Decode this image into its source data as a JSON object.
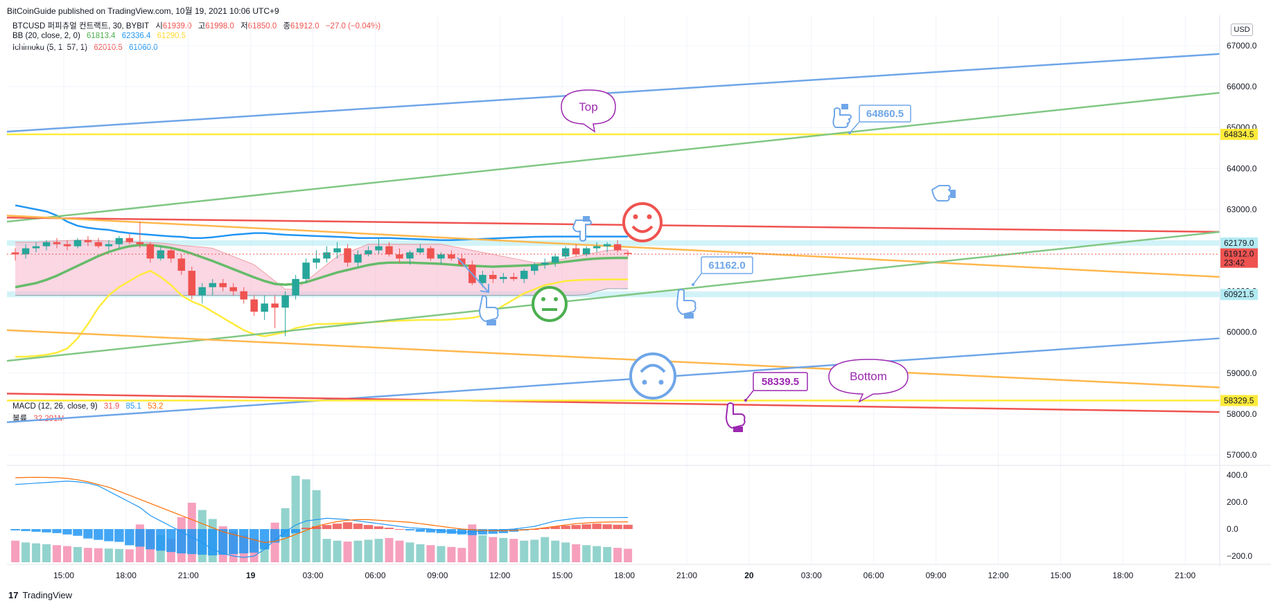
{
  "header": {
    "published": "BitCoinGuide published on TradingView.com, 10월 19, 2021 10:06 UTC+9"
  },
  "legend": {
    "symbol": "BTCUSD 퍼피츄얼 컨트랙트, 30, BYBIT",
    "ohlc": {
      "o_label": "시",
      "o": "61939.0",
      "h_label": "고",
      "h": "61998.0",
      "l_label": "저",
      "l": "61850.0",
      "c_label": "종",
      "c": "61912.0",
      "change": "−27.0 (−0.04%)"
    },
    "bb": {
      "label": "BB (20, close, 2, 0)",
      "basis": "61813.4",
      "upper": "62336.4",
      "lower": "61290.5"
    },
    "ichimoku": {
      "label": "Ichimoku (5, 1, 57, 1)",
      "v1": "62010.5",
      "v2": "61060.0"
    },
    "macd": {
      "label": "MACD (12, 26, close, 9)",
      "hist": "31.9",
      "macd": "85.1",
      "signal": "53.2"
    },
    "volume": {
      "label": "볼륨",
      "value": "32.291M"
    }
  },
  "currency": "USD",
  "footer": {
    "brand": "TradingView"
  },
  "colors": {
    "up": "#26a69a",
    "down": "#ef5350",
    "bb_basis": "#4caf50",
    "blue_line": "#2196f3",
    "yellow": "#ffeb3b",
    "orange": "#ff9800",
    "purple": "#9c27b0",
    "cyan": "#b2ebf2"
  },
  "chart_data": [
    {
      "type": "candlestick",
      "symbol": "BTCUSD",
      "interval": "30",
      "x_ticks": [
        "15:00",
        "18:00",
        "21:00",
        "19",
        "03:00",
        "06:00",
        "09:00",
        "12:00",
        "15:00",
        "18:00",
        "21:00",
        "20",
        "03:00",
        "06:00",
        "09:00",
        "12:00",
        "15:00",
        "18:00",
        "21:00"
      ],
      "y_ticks": [
        57000.0,
        58000.0,
        59000.0,
        60000.0,
        61000.0,
        62000.0,
        63000.0,
        64000.0,
        65000.0,
        66000.0,
        67000.0
      ],
      "y_tick_labels": [
        "57000.0",
        "58000.0",
        "59000.0",
        "60000.0",
        "61000.0",
        "62000.0",
        "63000.0",
        "64000.0",
        "65000.0",
        "66000.0",
        "67000.0"
      ],
      "ylim": [
        56500,
        67500
      ],
      "price_labels": [
        {
          "value": 64834.5,
          "label": "64834.5",
          "color": "#ffeb3b"
        },
        {
          "value": 62179.0,
          "label": "62179.0",
          "color": "#b2ebf2"
        },
        {
          "value": 61912.0,
          "label": "61912.0",
          "sublabel": "23:42",
          "color": "#ef5350"
        },
        {
          "value": 60921.5,
          "label": "60921.5",
          "color": "#b2ebf2"
        },
        {
          "value": 58329.5,
          "label": "58329.5",
          "color": "#ffeb3b"
        }
      ],
      "candles": [
        [
          61950,
          62050,
          61750,
          61900
        ],
        [
          61900,
          62150,
          61800,
          62050
        ],
        [
          62050,
          62200,
          61950,
          62100
        ],
        [
          62100,
          62250,
          62000,
          62200
        ],
        [
          62200,
          62300,
          62050,
          62150
        ],
        [
          62150,
          62250,
          62000,
          62100
        ],
        [
          62100,
          62300,
          62050,
          62250
        ],
        [
          62250,
          62350,
          62100,
          62200
        ],
        [
          62200,
          62300,
          62050,
          62100
        ],
        [
          62100,
          62250,
          62000,
          62150
        ],
        [
          62150,
          62350,
          62050,
          62300
        ],
        [
          62300,
          62400,
          62150,
          62200
        ],
        [
          62200,
          62700,
          62050,
          62150
        ],
        [
          62150,
          62200,
          61700,
          61800
        ],
        [
          61800,
          62100,
          61750,
          62000
        ],
        [
          62000,
          62050,
          61700,
          61800
        ],
        [
          61800,
          61900,
          61400,
          61500
        ],
        [
          61500,
          61600,
          60800,
          60900
        ],
        [
          60900,
          61200,
          60700,
          61100
        ],
        [
          61100,
          61300,
          60900,
          61200
        ],
        [
          61200,
          61300,
          61000,
          61100
        ],
        [
          61100,
          61200,
          60900,
          61000
        ],
        [
          61000,
          61100,
          60700,
          60800
        ],
        [
          60800,
          60900,
          60400,
          60500
        ],
        [
          60500,
          60900,
          60300,
          60700
        ],
        [
          60700,
          60900,
          60100,
          60600
        ],
        [
          60600,
          61000,
          59900,
          60900
        ],
        [
          60900,
          61400,
          60800,
          61300
        ],
        [
          61300,
          61800,
          61200,
          61700
        ],
        [
          61700,
          62000,
          61550,
          61800
        ],
        [
          61800,
          62100,
          61700,
          61950
        ],
        [
          61950,
          62200,
          61800,
          62050
        ],
        [
          62050,
          62150,
          61600,
          61700
        ],
        [
          61700,
          62000,
          61600,
          61900
        ],
        [
          61900,
          62100,
          61850,
          62000
        ],
        [
          62000,
          62300,
          61900,
          62100
        ],
        [
          62100,
          62200,
          61850,
          61900
        ],
        [
          61900,
          62050,
          61700,
          61800
        ],
        [
          61800,
          62000,
          61650,
          61950
        ],
        [
          61950,
          62150,
          61900,
          62050
        ],
        [
          62050,
          62100,
          61750,
          61800
        ],
        [
          61800,
          61950,
          61650,
          61900
        ],
        [
          61900,
          62000,
          61750,
          61800
        ],
        [
          61800,
          61900,
          61600,
          61650
        ],
        [
          61650,
          61750,
          61150,
          61200
        ],
        [
          61200,
          61500,
          61100,
          61400
        ],
        [
          61400,
          61500,
          61200,
          61300
        ],
        [
          61300,
          61450,
          61200,
          61350
        ],
        [
          61350,
          61450,
          61250,
          61300
        ],
        [
          61300,
          61550,
          61200,
          61500
        ],
        [
          61500,
          61700,
          61400,
          61650
        ],
        [
          61650,
          61800,
          61550,
          61700
        ],
        [
          61700,
          61900,
          61600,
          61850
        ],
        [
          61850,
          62100,
          61800,
          62050
        ],
        [
          62050,
          62150,
          61850,
          61900
        ],
        [
          61900,
          62100,
          61850,
          62050
        ],
        [
          62050,
          62200,
          61950,
          62100
        ],
        [
          62100,
          62200,
          61950,
          62150
        ],
        [
          62150,
          62250,
          61950,
          62000
        ],
        [
          61939,
          61998,
          61850,
          61912
        ]
      ],
      "bb_basis": [
        61100,
        61150,
        61200,
        61280,
        61380,
        61500,
        61620,
        61740,
        61860,
        61960,
        62040,
        62100,
        62130,
        62130,
        62100,
        62060,
        62000,
        61920,
        61830,
        61740,
        61640,
        61540,
        61440,
        61340,
        61250,
        61180,
        61160,
        61180,
        61220,
        61300,
        61380,
        61460,
        61520,
        61580,
        61640,
        61680,
        61700,
        61700,
        61700,
        61690,
        61680,
        61670,
        61650,
        61630,
        61620,
        61610,
        61600,
        61610,
        61620,
        61630,
        61640,
        61660,
        61690,
        61720,
        61750,
        61780,
        61800,
        61810,
        61815,
        61813
      ],
      "bb_upper": [
        63100,
        63050,
        63000,
        62950,
        62850,
        62700,
        62600,
        62550,
        62520,
        62500,
        62450,
        62420,
        62400,
        62380,
        62360,
        62340,
        62330,
        62300,
        62300,
        62320,
        62350,
        62380,
        62400,
        62420,
        62420,
        62400,
        62380,
        62370,
        62360,
        62350,
        62340,
        62330,
        62320,
        62300,
        62300,
        62300,
        62300,
        62290,
        62280,
        62270,
        62260,
        62250,
        62250,
        62260,
        62270,
        62280,
        62290,
        62300,
        62310,
        62320,
        62330,
        62335,
        62336,
        62336,
        62336,
        62336,
        62336,
        62336,
        62336,
        62336
      ],
      "bb_lower": [
        59400,
        59400,
        59420,
        59450,
        59500,
        59600,
        59850,
        60200,
        60600,
        60900,
        61100,
        61250,
        61400,
        61500,
        61350,
        61150,
        60900,
        60750,
        60650,
        60500,
        60350,
        60200,
        60050,
        59950,
        59900,
        59950,
        60000,
        60100,
        60150,
        60200,
        60200,
        60210,
        60220,
        60230,
        60240,
        60250,
        60270,
        60280,
        60290,
        60300,
        60300,
        60300,
        60310,
        60330,
        60350,
        60400,
        60500,
        60650,
        60800,
        60950,
        61050,
        61150,
        61200,
        61250,
        61270,
        61280,
        61285,
        61290,
        61290,
        61290
      ],
      "cloud_top": [
        62200,
        62200,
        62200,
        62220,
        62230,
        62240,
        62250,
        62250,
        62240,
        62230,
        62220,
        62210,
        62200,
        62190,
        62180,
        62150,
        62120,
        62100,
        62080,
        62050,
        61950,
        61850,
        61750,
        61650,
        61450,
        61250,
        61050,
        61050,
        61250,
        61450,
        61650,
        61850,
        61950,
        62050,
        62150,
        62150,
        62150,
        62150,
        62150,
        62150,
        62150,
        62150,
        62100,
        62050,
        62000,
        61950,
        61900,
        61850,
        61800,
        61750,
        61700,
        61700,
        61750,
        61800,
        61850,
        61900,
        61950,
        62000,
        62010,
        62010
      ],
      "cloud_bottom": [
        60900,
        60900,
        60900,
        60900,
        60900,
        60900,
        60900,
        60900,
        60900,
        60900,
        60900,
        60900,
        60900,
        60900,
        60900,
        60900,
        60900,
        60900,
        60900,
        60900,
        60900,
        60900,
        60900,
        60900,
        60900,
        60900,
        60900,
        60900,
        60900,
        60900,
        60900,
        60900,
        60900,
        60900,
        60900,
        60900,
        60900,
        60900,
        60900,
        60900,
        60900,
        60900,
        60900,
        60900,
        60900,
        60900,
        60900,
        60900,
        60900,
        60900,
        60900,
        60900,
        60900,
        60900,
        60900,
        60920,
        61000,
        61060,
        61060,
        61060
      ],
      "trend_lines": [
        {
          "color": "#6fa6e8",
          "from": [
            0,
            64900
          ],
          "to": [
            1.0,
            66800
          ]
        },
        {
          "color": "#ffeb3b",
          "from": [
            0,
            64834.5
          ],
          "to": [
            1.0,
            64834.5
          ]
        },
        {
          "color": "#81c784",
          "from": [
            0,
            62700
          ],
          "to": [
            1.0,
            65850
          ]
        },
        {
          "color": "#ef5350",
          "from": [
            0,
            62800
          ],
          "to": [
            1.0,
            62450
          ]
        },
        {
          "color": "#ffb74d",
          "from": [
            0,
            62850
          ],
          "to": [
            1.0,
            61350
          ]
        },
        {
          "color": "#81c784",
          "from": [
            0,
            59300
          ],
          "to": [
            1.0,
            62450
          ]
        },
        {
          "color": "#ffb74d",
          "from": [
            0,
            60050
          ],
          "to": [
            1.0,
            58650
          ]
        },
        {
          "color": "#6fa6e8",
          "from": [
            0,
            57800
          ],
          "to": [
            1.0,
            59850
          ]
        },
        {
          "color": "#ef5350",
          "from": [
            0,
            58500
          ],
          "to": [
            1.0,
            58050
          ]
        },
        {
          "color": "#ffeb3b",
          "from": [
            0,
            58329.5
          ],
          "to": [
            1.0,
            58329.5
          ]
        }
      ],
      "zones": [
        {
          "color": "#b2ebf2",
          "value": 62179.0
        },
        {
          "color": "#b2ebf2",
          "value": 60921.5
        }
      ],
      "annotations": [
        {
          "type": "callout",
          "text": "Top",
          "color": "#9c27b0"
        },
        {
          "type": "callout",
          "text": "Bottom",
          "color": "#9c27b0"
        },
        {
          "type": "price-note",
          "text": "64860.5",
          "color": "#6fa6e8"
        },
        {
          "type": "price-note",
          "text": "61162.0",
          "color": "#6fa6e8"
        },
        {
          "type": "price-note",
          "text": "58339.5",
          "color": "#9c27b0"
        }
      ]
    },
    {
      "type": "macd-volume",
      "y_tick_labels": [
        "400.0",
        "200.0",
        "0.0",
        "−200.0"
      ],
      "y_ticks": [
        400,
        200,
        0,
        -200
      ],
      "ylim": [
        -260,
        440
      ],
      "macd_hist": [
        -10,
        -15,
        -20,
        -25,
        -30,
        -40,
        -50,
        -70,
        -80,
        -90,
        -95,
        -120,
        -130,
        -150,
        -160,
        -170,
        -180,
        -185,
        -190,
        -195,
        -190,
        -185,
        -180,
        -175,
        -150,
        -100,
        -60,
        -30,
        10,
        20,
        30,
        40,
        50,
        40,
        30,
        20,
        10,
        0,
        -10,
        -20,
        -25,
        -30,
        -35,
        -40,
        -45,
        -40,
        -35,
        -30,
        -20,
        -10,
        0,
        10,
        20,
        25,
        30,
        35,
        40,
        35,
        32,
        31.9
      ],
      "macd_line": [
        330,
        335,
        340,
        345,
        350,
        355,
        350,
        340,
        320,
        280,
        240,
        200,
        160,
        100,
        60,
        20,
        -20,
        -60,
        -100,
        -150,
        -180,
        -200,
        -210,
        -200,
        -150,
        -80,
        -20,
        30,
        60,
        70,
        80,
        75,
        70,
        60,
        50,
        40,
        30,
        20,
        10,
        5,
        0,
        -10,
        -20,
        -25,
        -20,
        -15,
        -10,
        -5,
        0,
        10,
        20,
        40,
        60,
        70,
        80,
        85,
        85,
        85,
        85,
        85.1
      ],
      "signal_line": [
        380,
        382,
        383,
        382,
        380,
        375,
        365,
        350,
        330,
        310,
        280,
        250,
        220,
        190,
        160,
        130,
        100,
        70,
        40,
        10,
        -20,
        -40,
        -60,
        -80,
        -100,
        -90,
        -70,
        -40,
        -10,
        20,
        40,
        55,
        65,
        70,
        70,
        65,
        60,
        55,
        50,
        40,
        30,
        20,
        10,
        0,
        -5,
        -10,
        -12,
        -12,
        -10,
        -5,
        0,
        10,
        20,
        30,
        40,
        45,
        50,
        52,
        53,
        53.2
      ],
      "volume": [
        120,
        110,
        105,
        100,
        95,
        90,
        85,
        80,
        78,
        76,
        74,
        72,
        210,
        180,
        150,
        130,
        250,
        330,
        290,
        240,
        200,
        170,
        150,
        130,
        110,
        220,
        300,
        480,
        460,
        400,
        130,
        120,
        115,
        120,
        125,
        130,
        135,
        120,
        110,
        100,
        95,
        90,
        85,
        80,
        210,
        150,
        140,
        135,
        130,
        120,
        125,
        140,
        120,
        110,
        100,
        95,
        90,
        85,
        80,
        75
      ]
    }
  ]
}
